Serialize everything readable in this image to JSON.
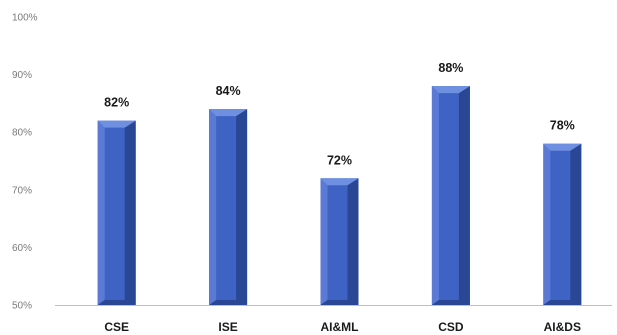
{
  "chart_data": {
    "type": "bar",
    "categories": [
      "CSE",
      "ISE",
      "AI&ML",
      "CSD",
      "AI&DS"
    ],
    "values": [
      82,
      84,
      72,
      88,
      78
    ],
    "data_labels": [
      "82%",
      "84%",
      "72%",
      "88%",
      "78%"
    ],
    "y_ticks": [
      50,
      60,
      70,
      80,
      90,
      100
    ],
    "y_tick_labels": [
      "50%",
      "60%",
      "70%",
      "80%",
      "90%",
      "100%"
    ],
    "ylim": [
      50,
      100
    ],
    "grid": false,
    "legend": "none",
    "style": "3d-column",
    "colors": {
      "bar_front": "#3f63c4",
      "bar_side": "#2a4796",
      "bar_top": "#6f8fe0",
      "bar_highlight": "#5a7ad6",
      "axis_line": "#bfbfbf"
    }
  }
}
